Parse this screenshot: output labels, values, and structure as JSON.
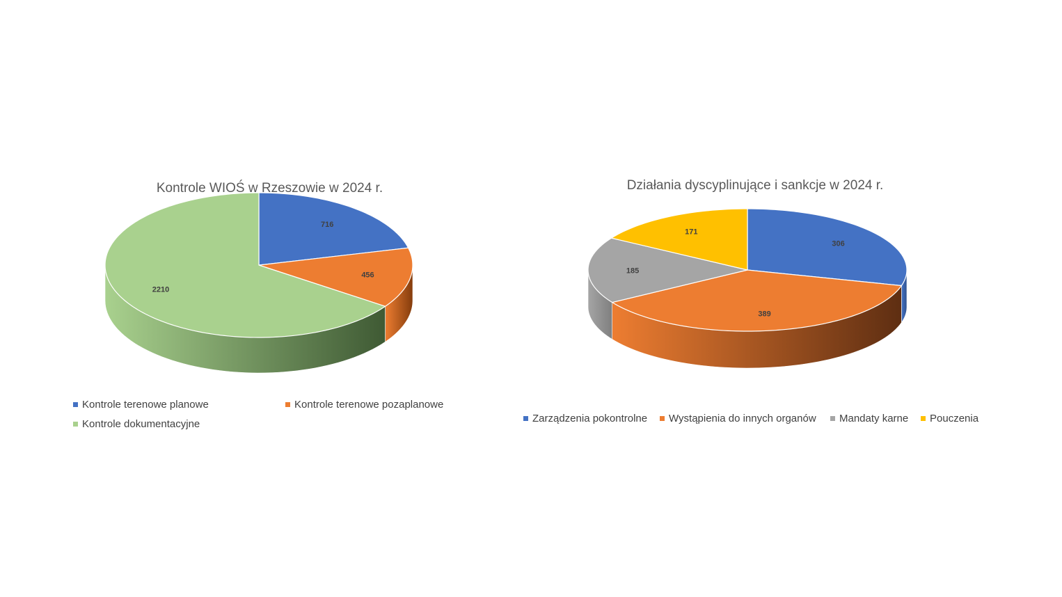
{
  "chart_data": [
    {
      "type": "pie",
      "title": "Kontrole WIOŚ w Rzeszowie w 2024 r.",
      "categories": [
        "Kontrole terenowe planowe",
        "Kontrole terenowe pozaplanowe",
        "Kontrole dokumentacyjne"
      ],
      "values": [
        716,
        456,
        2210
      ],
      "colors": [
        "#4472C4",
        "#ED7D31",
        "#A9D18E"
      ],
      "side_colors": [
        "#2F528F",
        "#843C0C",
        "#3F5A34"
      ],
      "legend_position": "bottom",
      "style": "3d"
    },
    {
      "type": "pie",
      "title": "Działania dyscyplinujące i sankcje w 2024 r.",
      "categories": [
        "Zarządzenia pokontrolne",
        "Wystąpienia do innych organów",
        "Mandaty karne",
        "Pouczenia"
      ],
      "values": [
        306,
        389,
        185,
        171
      ],
      "colors": [
        "#4472C4",
        "#ED7D31",
        "#A5A5A5",
        "#FFC000"
      ],
      "side_colors": [
        "#2F528F",
        "#5E2E12",
        "#7F7F7F",
        "#BF9000"
      ],
      "legend_position": "bottom",
      "style": "3d"
    }
  ]
}
